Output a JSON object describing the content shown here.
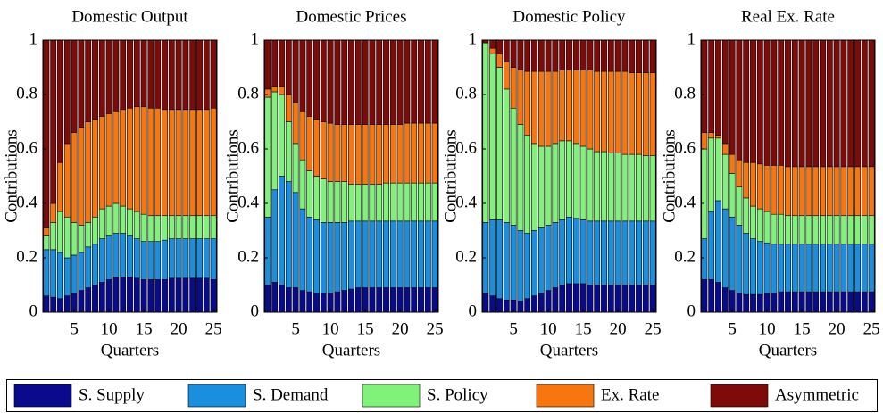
{
  "chart_data": [
    {
      "type": "bar",
      "stacked": true,
      "title": "Domestic Output",
      "xlabel": "Quarters",
      "ylabel": "Contributions",
      "x": [
        1,
        2,
        3,
        4,
        5,
        6,
        7,
        8,
        9,
        10,
        11,
        12,
        13,
        14,
        15,
        16,
        17,
        18,
        19,
        20,
        21,
        22,
        23,
        24,
        25
      ],
      "xlim": [
        0.5,
        25.5
      ],
      "xticks": [
        5,
        10,
        15,
        20,
        25
      ],
      "ylim": [
        0,
        1
      ],
      "yticks": [
        0,
        0.2,
        0.4,
        0.6,
        0.8,
        1
      ],
      "legend": "bottom",
      "series": [
        {
          "name": "S. Supply",
          "color": "#0a0a8c",
          "values": [
            0.06,
            0.055,
            0.05,
            0.06,
            0.07,
            0.08,
            0.09,
            0.1,
            0.11,
            0.12,
            0.13,
            0.13,
            0.13,
            0.125,
            0.12,
            0.12,
            0.12,
            0.12,
            0.125,
            0.125,
            0.125,
            0.125,
            0.125,
            0.125,
            0.12
          ]
        },
        {
          "name": "S. Demand",
          "color": "#1a8fe0",
          "values": [
            0.17,
            0.175,
            0.17,
            0.14,
            0.14,
            0.14,
            0.15,
            0.15,
            0.16,
            0.16,
            0.16,
            0.16,
            0.15,
            0.145,
            0.14,
            0.14,
            0.14,
            0.145,
            0.145,
            0.145,
            0.145,
            0.145,
            0.145,
            0.145,
            0.15
          ]
        },
        {
          "name": "S. Policy",
          "color": "#80f27a",
          "values": [
            0.05,
            0.1,
            0.15,
            0.15,
            0.12,
            0.1,
            0.09,
            0.1,
            0.11,
            0.11,
            0.11,
            0.1,
            0.1,
            0.1,
            0.1,
            0.095,
            0.095,
            0.09,
            0.085,
            0.085,
            0.085,
            0.085,
            0.085,
            0.085,
            0.085
          ]
        },
        {
          "name": "Ex. Rate",
          "color": "#f7760f",
          "values": [
            0.03,
            0.07,
            0.18,
            0.27,
            0.33,
            0.36,
            0.37,
            0.36,
            0.34,
            0.34,
            0.34,
            0.355,
            0.37,
            0.385,
            0.395,
            0.395,
            0.395,
            0.39,
            0.39,
            0.39,
            0.39,
            0.39,
            0.39,
            0.39,
            0.395
          ]
        },
        {
          "name": "Asymmetric",
          "color": "#7f0a0a",
          "values": [
            0.69,
            0.6,
            0.45,
            0.38,
            0.34,
            0.32,
            0.3,
            0.29,
            0.28,
            0.27,
            0.26,
            0.255,
            0.25,
            0.245,
            0.245,
            0.25,
            0.25,
            0.255,
            0.255,
            0.255,
            0.255,
            0.255,
            0.255,
            0.255,
            0.25
          ]
        }
      ]
    },
    {
      "type": "bar",
      "stacked": true,
      "title": "Domestic Prices",
      "xlabel": "Quarters",
      "ylabel": "Contributions",
      "x": [
        1,
        2,
        3,
        4,
        5,
        6,
        7,
        8,
        9,
        10,
        11,
        12,
        13,
        14,
        15,
        16,
        17,
        18,
        19,
        20,
        21,
        22,
        23,
        24,
        25
      ],
      "xlim": [
        0.5,
        25.5
      ],
      "xticks": [
        5,
        10,
        15,
        20,
        25
      ],
      "ylim": [
        0,
        1
      ],
      "yticks": [
        0,
        0.2,
        0.4,
        0.6,
        0.8,
        1
      ],
      "series": [
        {
          "name": "S. Supply",
          "color": "#0a0a8c",
          "values": [
            0.1,
            0.11,
            0.1,
            0.09,
            0.09,
            0.08,
            0.075,
            0.07,
            0.07,
            0.07,
            0.075,
            0.08,
            0.085,
            0.09,
            0.09,
            0.09,
            0.09,
            0.09,
            0.09,
            0.09,
            0.09,
            0.09,
            0.09,
            0.09,
            0.09
          ]
        },
        {
          "name": "S. Demand",
          "color": "#1a8fe0",
          "values": [
            0.25,
            0.34,
            0.4,
            0.39,
            0.35,
            0.3,
            0.275,
            0.27,
            0.26,
            0.26,
            0.255,
            0.25,
            0.25,
            0.245,
            0.245,
            0.245,
            0.245,
            0.245,
            0.245,
            0.245,
            0.245,
            0.245,
            0.245,
            0.245,
            0.245
          ]
        },
        {
          "name": "S. Policy",
          "color": "#80f27a",
          "values": [
            0.44,
            0.36,
            0.3,
            0.22,
            0.18,
            0.18,
            0.17,
            0.16,
            0.16,
            0.15,
            0.15,
            0.15,
            0.135,
            0.135,
            0.135,
            0.135,
            0.135,
            0.14,
            0.14,
            0.14,
            0.14,
            0.14,
            0.14,
            0.14,
            0.14
          ]
        },
        {
          "name": "Ex. Rate",
          "color": "#f7760f",
          "values": [
            0.03,
            0.02,
            0.03,
            0.1,
            0.15,
            0.18,
            0.2,
            0.21,
            0.21,
            0.215,
            0.21,
            0.21,
            0.22,
            0.22,
            0.22,
            0.22,
            0.22,
            0.215,
            0.215,
            0.215,
            0.22,
            0.22,
            0.22,
            0.22,
            0.22
          ]
        },
        {
          "name": "Asymmetric",
          "color": "#7f0a0a",
          "values": [
            0.18,
            0.17,
            0.17,
            0.2,
            0.23,
            0.26,
            0.28,
            0.29,
            0.3,
            0.305,
            0.31,
            0.31,
            0.31,
            0.31,
            0.31,
            0.31,
            0.31,
            0.31,
            0.31,
            0.31,
            0.305,
            0.305,
            0.305,
            0.305,
            0.305
          ]
        }
      ]
    },
    {
      "type": "bar",
      "stacked": true,
      "title": "Domestic Policy",
      "xlabel": "Quarters",
      "ylabel": "Contributions",
      "x": [
        1,
        2,
        3,
        4,
        5,
        6,
        7,
        8,
        9,
        10,
        11,
        12,
        13,
        14,
        15,
        16,
        17,
        18,
        19,
        20,
        21,
        22,
        23,
        24,
        25
      ],
      "xlim": [
        0.5,
        25.5
      ],
      "xticks": [
        5,
        10,
        15,
        20,
        25
      ],
      "ylim": [
        0,
        1
      ],
      "yticks": [
        0,
        0.2,
        0.4,
        0.6,
        0.8,
        1
      ],
      "series": [
        {
          "name": "S. Supply",
          "color": "#0a0a8c",
          "values": [
            0.07,
            0.06,
            0.05,
            0.045,
            0.045,
            0.04,
            0.05,
            0.06,
            0.07,
            0.08,
            0.09,
            0.1,
            0.105,
            0.105,
            0.105,
            0.1,
            0.1,
            0.1,
            0.1,
            0.1,
            0.1,
            0.1,
            0.1,
            0.1,
            0.1
          ]
        },
        {
          "name": "S. Demand",
          "color": "#1a8fe0",
          "values": [
            0.26,
            0.28,
            0.29,
            0.285,
            0.275,
            0.26,
            0.24,
            0.24,
            0.24,
            0.24,
            0.24,
            0.24,
            0.245,
            0.24,
            0.235,
            0.235,
            0.235,
            0.235,
            0.235,
            0.235,
            0.235,
            0.235,
            0.235,
            0.235,
            0.235
          ]
        },
        {
          "name": "S. Policy",
          "color": "#80f27a",
          "values": [
            0.66,
            0.61,
            0.56,
            0.49,
            0.43,
            0.39,
            0.36,
            0.32,
            0.3,
            0.29,
            0.29,
            0.29,
            0.28,
            0.275,
            0.27,
            0.265,
            0.255,
            0.255,
            0.25,
            0.25,
            0.245,
            0.245,
            0.245,
            0.24,
            0.24
          ]
        },
        {
          "name": "Ex. Rate",
          "color": "#f7760f",
          "values": [
            0,
            0.02,
            0.05,
            0.1,
            0.15,
            0.2,
            0.235,
            0.265,
            0.275,
            0.275,
            0.265,
            0.26,
            0.26,
            0.27,
            0.28,
            0.29,
            0.295,
            0.295,
            0.3,
            0.3,
            0.305,
            0.3,
            0.3,
            0.305,
            0.305
          ]
        },
        {
          "name": "Asymmetric",
          "color": "#7f0a0a",
          "values": [
            0.01,
            0.03,
            0.05,
            0.08,
            0.1,
            0.11,
            0.115,
            0.115,
            0.115,
            0.115,
            0.115,
            0.11,
            0.11,
            0.11,
            0.11,
            0.11,
            0.115,
            0.115,
            0.115,
            0.115,
            0.115,
            0.12,
            0.12,
            0.12,
            0.12
          ]
        }
      ]
    },
    {
      "type": "bar",
      "stacked": true,
      "title": "Real Ex. Rate",
      "xlabel": "Quarters",
      "ylabel": "Contributions",
      "x": [
        1,
        2,
        3,
        4,
        5,
        6,
        7,
        8,
        9,
        10,
        11,
        12,
        13,
        14,
        15,
        16,
        17,
        18,
        19,
        20,
        21,
        22,
        23,
        24,
        25
      ],
      "xlim": [
        0.5,
        25.5
      ],
      "xticks": [
        5,
        10,
        15,
        20,
        25
      ],
      "ylim": [
        0,
        1
      ],
      "yticks": [
        0,
        0.2,
        0.4,
        0.6,
        0.8,
        1
      ],
      "series": [
        {
          "name": "S. Supply",
          "color": "#0a0a8c",
          "values": [
            0.12,
            0.12,
            0.11,
            0.09,
            0.08,
            0.07,
            0.065,
            0.065,
            0.065,
            0.07,
            0.07,
            0.075,
            0.075,
            0.075,
            0.075,
            0.075,
            0.075,
            0.075,
            0.075,
            0.075,
            0.075,
            0.075,
            0.075,
            0.075,
            0.075
          ]
        },
        {
          "name": "S. Demand",
          "color": "#1a8fe0",
          "values": [
            0.15,
            0.25,
            0.3,
            0.29,
            0.27,
            0.25,
            0.225,
            0.205,
            0.195,
            0.185,
            0.18,
            0.175,
            0.175,
            0.175,
            0.175,
            0.175,
            0.175,
            0.175,
            0.175,
            0.175,
            0.175,
            0.175,
            0.175,
            0.175,
            0.175
          ]
        },
        {
          "name": "S. Policy",
          "color": "#80f27a",
          "values": [
            0.33,
            0.27,
            0.23,
            0.2,
            0.16,
            0.14,
            0.13,
            0.12,
            0.12,
            0.115,
            0.11,
            0.11,
            0.105,
            0.105,
            0.105,
            0.105,
            0.105,
            0.105,
            0.105,
            0.105,
            0.105,
            0.105,
            0.105,
            0.105,
            0.105
          ]
        },
        {
          "name": "Ex. Rate",
          "color": "#f7760f",
          "values": [
            0.06,
            0.02,
            0.01,
            0.04,
            0.07,
            0.1,
            0.13,
            0.16,
            0.165,
            0.17,
            0.18,
            0.18,
            0.18,
            0.18,
            0.18,
            0.18,
            0.18,
            0.18,
            0.18,
            0.18,
            0.18,
            0.18,
            0.18,
            0.18,
            0.18
          ]
        },
        {
          "name": "Asymmetric",
          "color": "#7f0a0a",
          "values": [
            0.34,
            0.34,
            0.35,
            0.38,
            0.42,
            0.44,
            0.45,
            0.45,
            0.455,
            0.46,
            0.46,
            0.46,
            0.465,
            0.465,
            0.465,
            0.465,
            0.465,
            0.465,
            0.465,
            0.465,
            0.465,
            0.465,
            0.465,
            0.465,
            0.465
          ]
        }
      ]
    }
  ]
}
